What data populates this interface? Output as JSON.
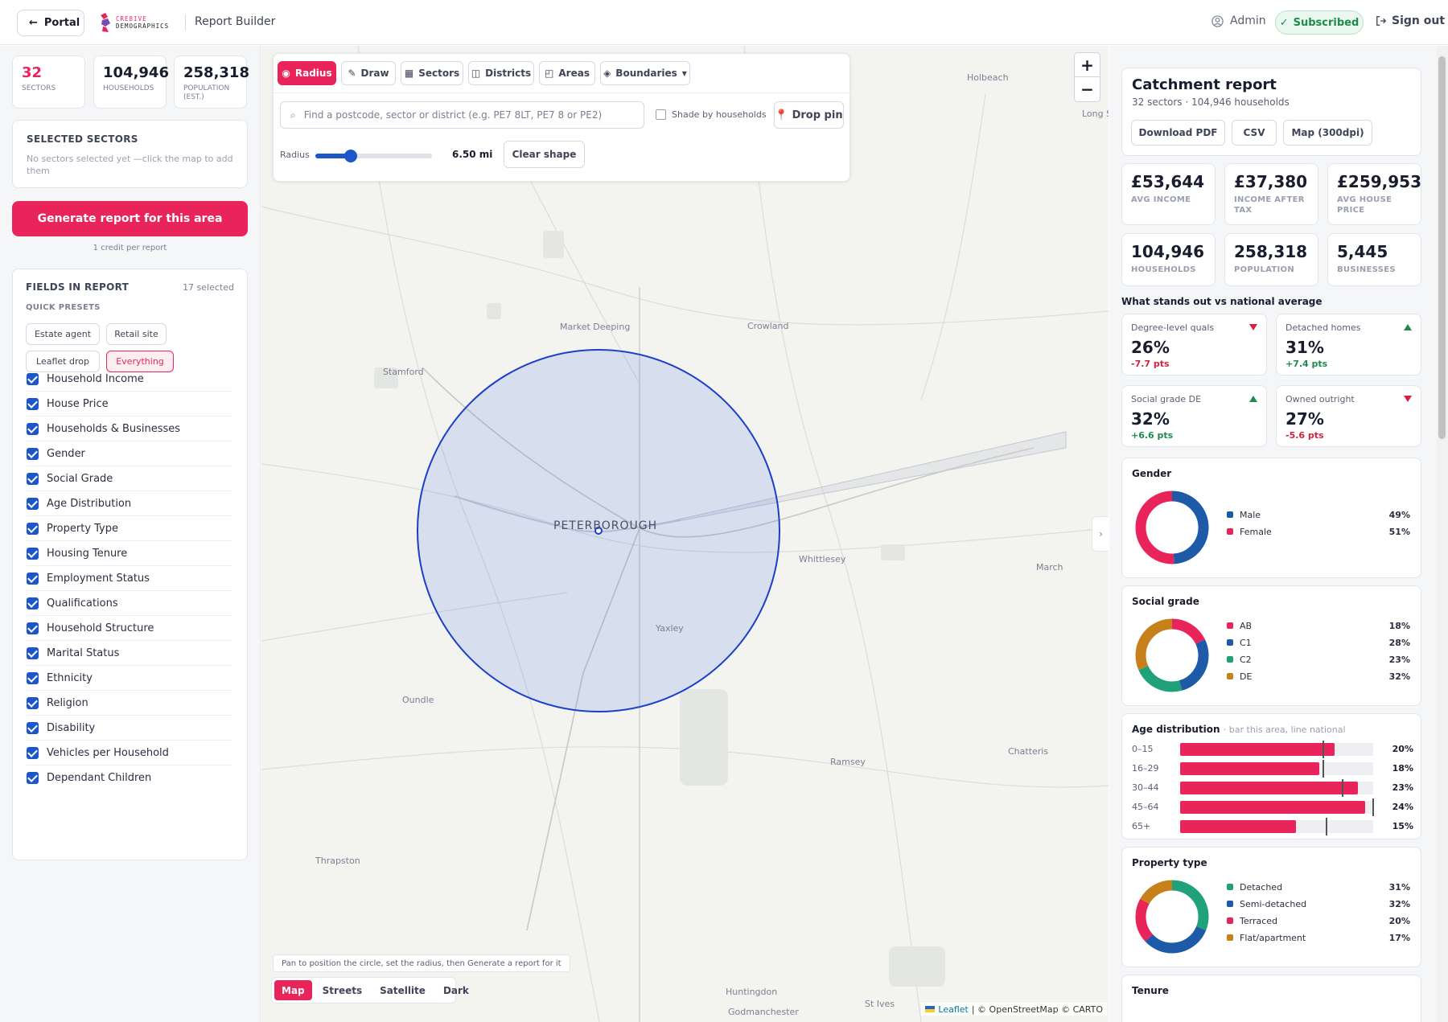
{
  "header": {
    "portal_label": "Portal",
    "logo_top": "CRE8IVE",
    "logo_bottom": "DEMOGRAPHICS",
    "title": "Report Builder",
    "admin_label": "Admin",
    "subscribed_label": "Subscribed",
    "signout_label": "Sign out"
  },
  "summary": {
    "sectors": {
      "value": "32",
      "label": "SECTORS"
    },
    "households": {
      "value": "104,946",
      "label": "HOUSEHOLDS"
    },
    "population": {
      "value": "258,318",
      "label": "POPULATION (EST.)"
    }
  },
  "selected_sectors": {
    "heading": "SELECTED SECTORS",
    "empty_text": "No sectors selected yet —click the map to add them"
  },
  "generate": {
    "label": "Generate report for this area",
    "credit_note": "1 credit per report"
  },
  "fields": {
    "heading": "FIELDS IN REPORT",
    "count": "17 selected",
    "presets_heading": "QUICK PRESETS",
    "presets": [
      "Estate agent",
      "Retail site",
      "Leaflet drop",
      "Everything"
    ],
    "active_preset": "Everything",
    "items": [
      "Household Income",
      "House Price",
      "Households & Businesses",
      "Gender",
      "Social Grade",
      "Age Distribution",
      "Property Type",
      "Housing Tenure",
      "Employment Status",
      "Qualifications",
      "Household Structure",
      "Marital Status",
      "Ethnicity",
      "Religion",
      "Disability",
      "Vehicles per Household",
      "Dependant Children"
    ]
  },
  "map": {
    "tools": [
      "Radius",
      "Draw",
      "Sectors",
      "Districts",
      "Areas",
      "Boundaries"
    ],
    "active_tool": "Radius",
    "search_placeholder": "Find a postcode, sector or district (e.g. PE7 8LT, PE7 8 or PE2)",
    "shade_label": "Shade by households",
    "drop_pin_label": "Drop pin",
    "radius_label": "Radius",
    "radius_value": "6.50 mi",
    "radius_fraction": 0.3,
    "clear_label": "Clear shape",
    "zoom_in": "+",
    "zoom_out": "−",
    "hint": "Pan to position the circle, set the radius, then Generate a report for it",
    "basemaps": [
      "Map",
      "Streets",
      "Satellite",
      "Dark"
    ],
    "active_basemap": "Map",
    "attribution_leaflet": "Leaflet",
    "attribution_rest": "| © OpenStreetMap © CARTO",
    "places": [
      "Holbeach",
      "Long S",
      "Market Deeping",
      "Crowland",
      "Stamford",
      "PETERBOROUGH",
      "Whittlesey",
      "March",
      "Yaxley",
      "Oundle",
      "Ramsey",
      "Chatteris",
      "Thrapston",
      "Huntingdon",
      "St Ives",
      "Godmanchester"
    ]
  },
  "report": {
    "title": "Catchment report",
    "subtitle": "32 sectors · 104,946 households",
    "downloads": [
      "Download PDF",
      "CSV",
      "Map (300dpi)"
    ],
    "kpis": [
      {
        "value": "£53,644",
        "label": "AVG INCOME"
      },
      {
        "value": "£37,380",
        "label": "INCOME AFTER TAX"
      },
      {
        "value": "£259,953",
        "label": "AVG HOUSE PRICE"
      },
      {
        "value": "104,946",
        "label": "HOUSEHOLDS"
      },
      {
        "value": "258,318",
        "label": "POPULATION"
      },
      {
        "value": "5,445",
        "label": "BUSINESSES"
      }
    ],
    "stands_out_heading": "What stands out vs national average",
    "comparisons": [
      {
        "name": "Degree-level quals",
        "value": "26%",
        "delta": "-7.7 pts",
        "direction": "down"
      },
      {
        "name": "Detached homes",
        "value": "31%",
        "delta": "+7.4 pts",
        "direction": "up"
      },
      {
        "name": "Social grade DE",
        "value": "32%",
        "delta": "+6.6 pts",
        "direction": "up"
      },
      {
        "name": "Owned outright",
        "value": "27%",
        "delta": "-5.6 pts",
        "direction": "down"
      }
    ],
    "gender": {
      "title": "Gender",
      "items": [
        {
          "name": "Male",
          "pct": "49%",
          "value": 49,
          "color": "#1d5aa8"
        },
        {
          "name": "Female",
          "pct": "51%",
          "value": 51,
          "color": "#e8245a"
        }
      ]
    },
    "social_grade": {
      "title": "Social grade",
      "items": [
        {
          "name": "AB",
          "pct": "18%",
          "value": 18,
          "color": "#e8245a"
        },
        {
          "name": "C1",
          "pct": "28%",
          "value": 28,
          "color": "#1d5aa8"
        },
        {
          "name": "C2",
          "pct": "23%",
          "value": 23,
          "color": "#1fa27a"
        },
        {
          "name": "DE",
          "pct": "32%",
          "value": 32,
          "color": "#c7801a"
        }
      ]
    },
    "age": {
      "title": "Age distribution",
      "note": "· bar this area, line national",
      "rows": [
        {
          "label": "0–15",
          "pct": "20%",
          "value": 20,
          "national": 18.5
        },
        {
          "label": "16–29",
          "pct": "18%",
          "value": 18,
          "national": 18.5
        },
        {
          "label": "30–44",
          "pct": "23%",
          "value": 23,
          "national": 21
        },
        {
          "label": "45–64",
          "pct": "24%",
          "value": 24,
          "national": 27
        },
        {
          "label": "65+",
          "pct": "15%",
          "value": 15,
          "national": 19
        }
      ]
    },
    "property_type": {
      "title": "Property type",
      "items": [
        {
          "name": "Detached",
          "pct": "31%",
          "value": 31,
          "color": "#1fa27a"
        },
        {
          "name": "Semi-detached",
          "pct": "32%",
          "value": 32,
          "color": "#1d5aa8"
        },
        {
          "name": "Terraced",
          "pct": "20%",
          "value": 20,
          "color": "#e8245a"
        },
        {
          "name": "Flat/apartment",
          "pct": "17%",
          "value": 17,
          "color": "#c7801a"
        }
      ]
    },
    "tenure_title": "Tenure"
  }
}
